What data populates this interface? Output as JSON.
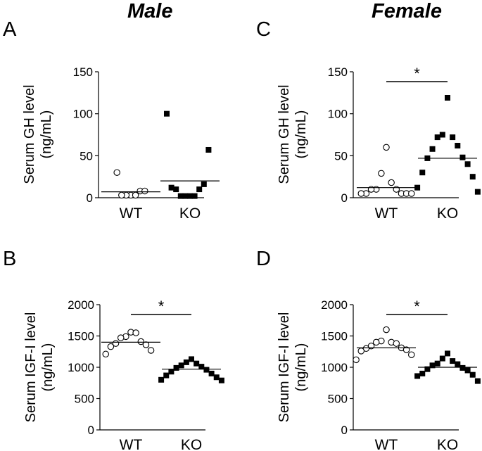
{
  "columns": {
    "left": "Male",
    "right": "Female"
  },
  "chart_data": [
    {
      "panel": "A",
      "type": "scatter",
      "sex": "Male",
      "ylabel_line1": "Serum GH level",
      "ylabel_line2": "(ng/mL)",
      "ylim": [
        0,
        150
      ],
      "yticks": [
        0,
        50,
        100,
        150
      ],
      "categories": [
        "WT",
        "KO"
      ],
      "groups": [
        {
          "name": "WT",
          "marker": "open-circle",
          "mean": 7,
          "values": [
            3,
            3,
            3,
            3,
            8,
            30,
            8
          ]
        },
        {
          "name": "KO",
          "marker": "filled-square",
          "mean": 20,
          "values": [
            2,
            2,
            2,
            2,
            10,
            10,
            16,
            12,
            57,
            100
          ]
        }
      ],
      "significance": ""
    },
    {
      "panel": "B",
      "type": "scatter",
      "sex": "Male",
      "ylabel_line1": "Serum IGF-I level",
      "ylabel_line2": "(ng/mL)",
      "ylim": [
        0,
        2000
      ],
      "yticks": [
        0,
        500,
        1000,
        1500,
        2000
      ],
      "categories": [
        "WT",
        "KO"
      ],
      "groups": [
        {
          "name": "WT",
          "marker": "open-circle",
          "mean": 1400,
          "values": [
            1560,
            1490,
            1550,
            1470,
            1410,
            1380,
            1360,
            1330,
            1270,
            1210
          ]
        },
        {
          "name": "KO",
          "marker": "filled-square",
          "mean": 970,
          "values": [
            1130,
            1080,
            1060,
            1030,
            1010,
            990,
            960,
            930,
            900,
            870,
            840,
            800,
            790
          ]
        }
      ],
      "significance": "*"
    },
    {
      "panel": "C",
      "type": "scatter",
      "sex": "Female",
      "ylabel_line1": "Serum GH level",
      "ylabel_line2": "(ng/mL)",
      "ylim": [
        0,
        150
      ],
      "yticks": [
        0,
        50,
        100,
        150
      ],
      "categories": [
        "WT",
        "KO"
      ],
      "groups": [
        {
          "name": "WT",
          "marker": "open-circle",
          "mean": 12,
          "values": [
            60,
            29,
            18,
            10,
            10,
            10,
            5,
            5,
            5,
            5,
            5
          ]
        },
        {
          "name": "KO",
          "marker": "filled-square",
          "mean": 47,
          "values": [
            119,
            75,
            72,
            72,
            62,
            58,
            48,
            47,
            40,
            30,
            25,
            12,
            7
          ]
        }
      ],
      "significance": "*"
    },
    {
      "panel": "D",
      "type": "scatter",
      "sex": "Female",
      "ylabel_line1": "Serum IGF-I level",
      "ylabel_line2": "(ng/mL)",
      "ylim": [
        0,
        2000
      ],
      "yticks": [
        0,
        500,
        1000,
        1500,
        2000
      ],
      "categories": [
        "WT",
        "KO"
      ],
      "groups": [
        {
          "name": "WT",
          "marker": "open-circle",
          "mean": 1310,
          "values": [
            1600,
            1420,
            1400,
            1400,
            1380,
            1340,
            1310,
            1300,
            1280,
            1260,
            1200,
            1120
          ]
        },
        {
          "name": "KO",
          "marker": "filled-square",
          "mean": 1000,
          "values": [
            1220,
            1140,
            1100,
            1060,
            1050,
            1030,
            990,
            970,
            950,
            900,
            880,
            860,
            780
          ]
        }
      ],
      "significance": "*"
    }
  ]
}
